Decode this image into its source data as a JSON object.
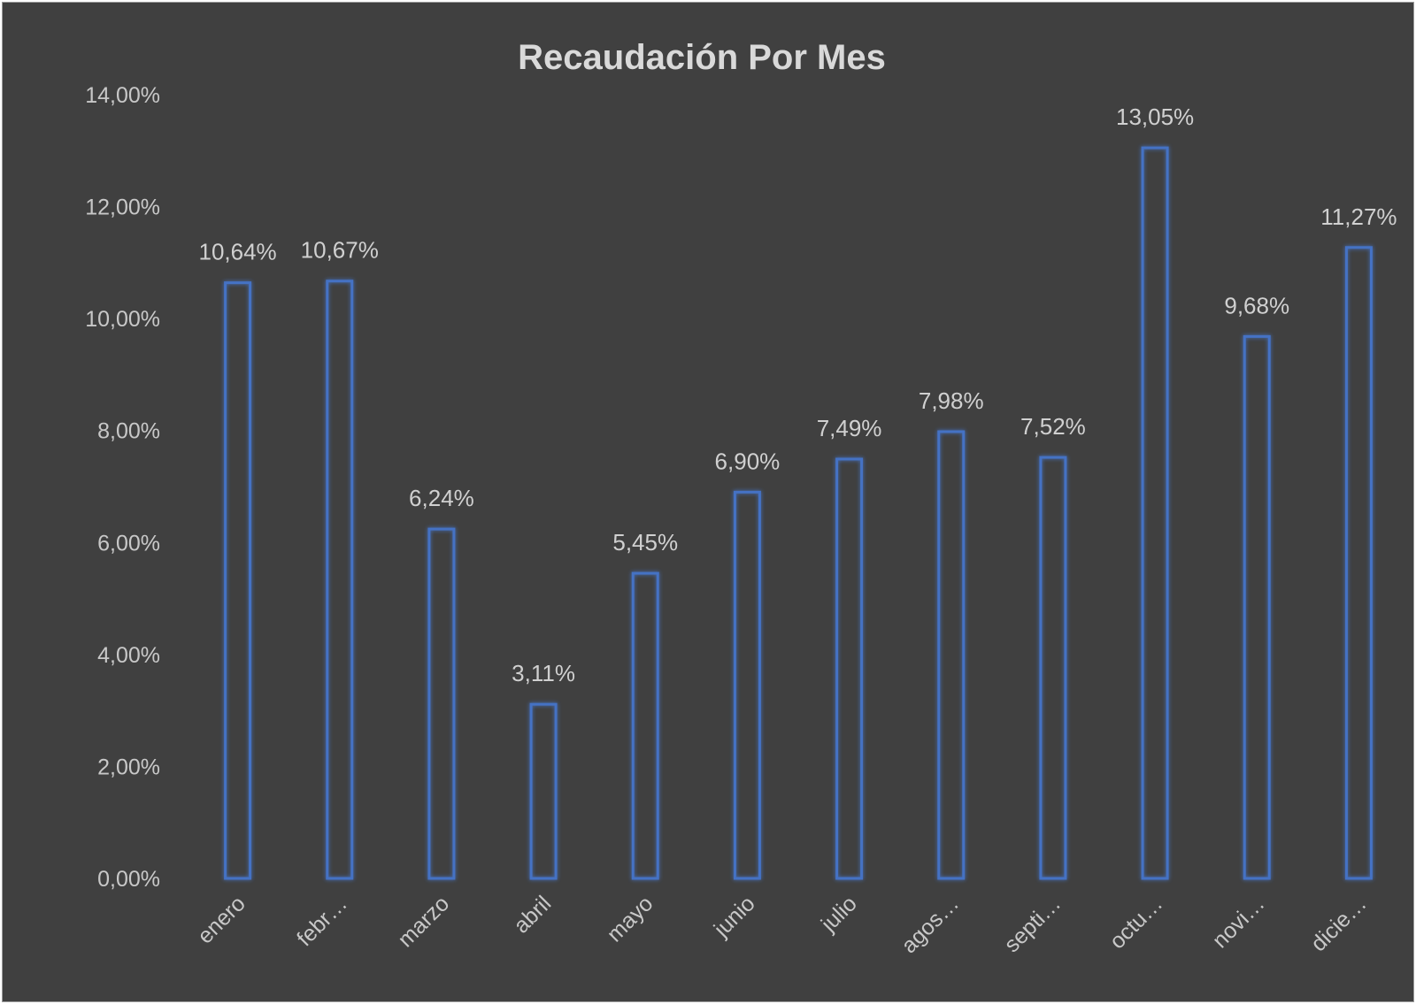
{
  "chart_data": {
    "type": "bar",
    "title": "Recaudación Por Mes",
    "categories": [
      "enero",
      "febr…",
      "marzo",
      "abril",
      "mayo",
      "junio",
      "julio",
      "agos…",
      "septi…",
      "octu…",
      "novi…",
      "dicie…"
    ],
    "values": [
      10.64,
      10.67,
      6.24,
      3.11,
      5.45,
      6.9,
      7.49,
      7.98,
      7.52,
      13.05,
      9.68,
      11.27
    ],
    "data_labels": [
      "10,64%",
      "10,67%",
      "6,24%",
      "3,11%",
      "5,45%",
      "6,90%",
      "7,49%",
      "7,98%",
      "7,52%",
      "13,05%",
      "9,68%",
      "11,27%"
    ],
    "y_ticks": [
      0,
      2,
      4,
      6,
      8,
      10,
      12,
      14
    ],
    "y_tick_labels": [
      "0,00%",
      "2,00%",
      "4,00%",
      "6,00%",
      "8,00%",
      "10,00%",
      "12,00%",
      "14,00%"
    ],
    "ylim": [
      0,
      14
    ],
    "xlabel": "",
    "ylabel": "",
    "grid": false,
    "legend": "none",
    "colors": {
      "background": "#404040",
      "bar_outline": "#4472c4",
      "text": "#c8c8c8"
    }
  }
}
